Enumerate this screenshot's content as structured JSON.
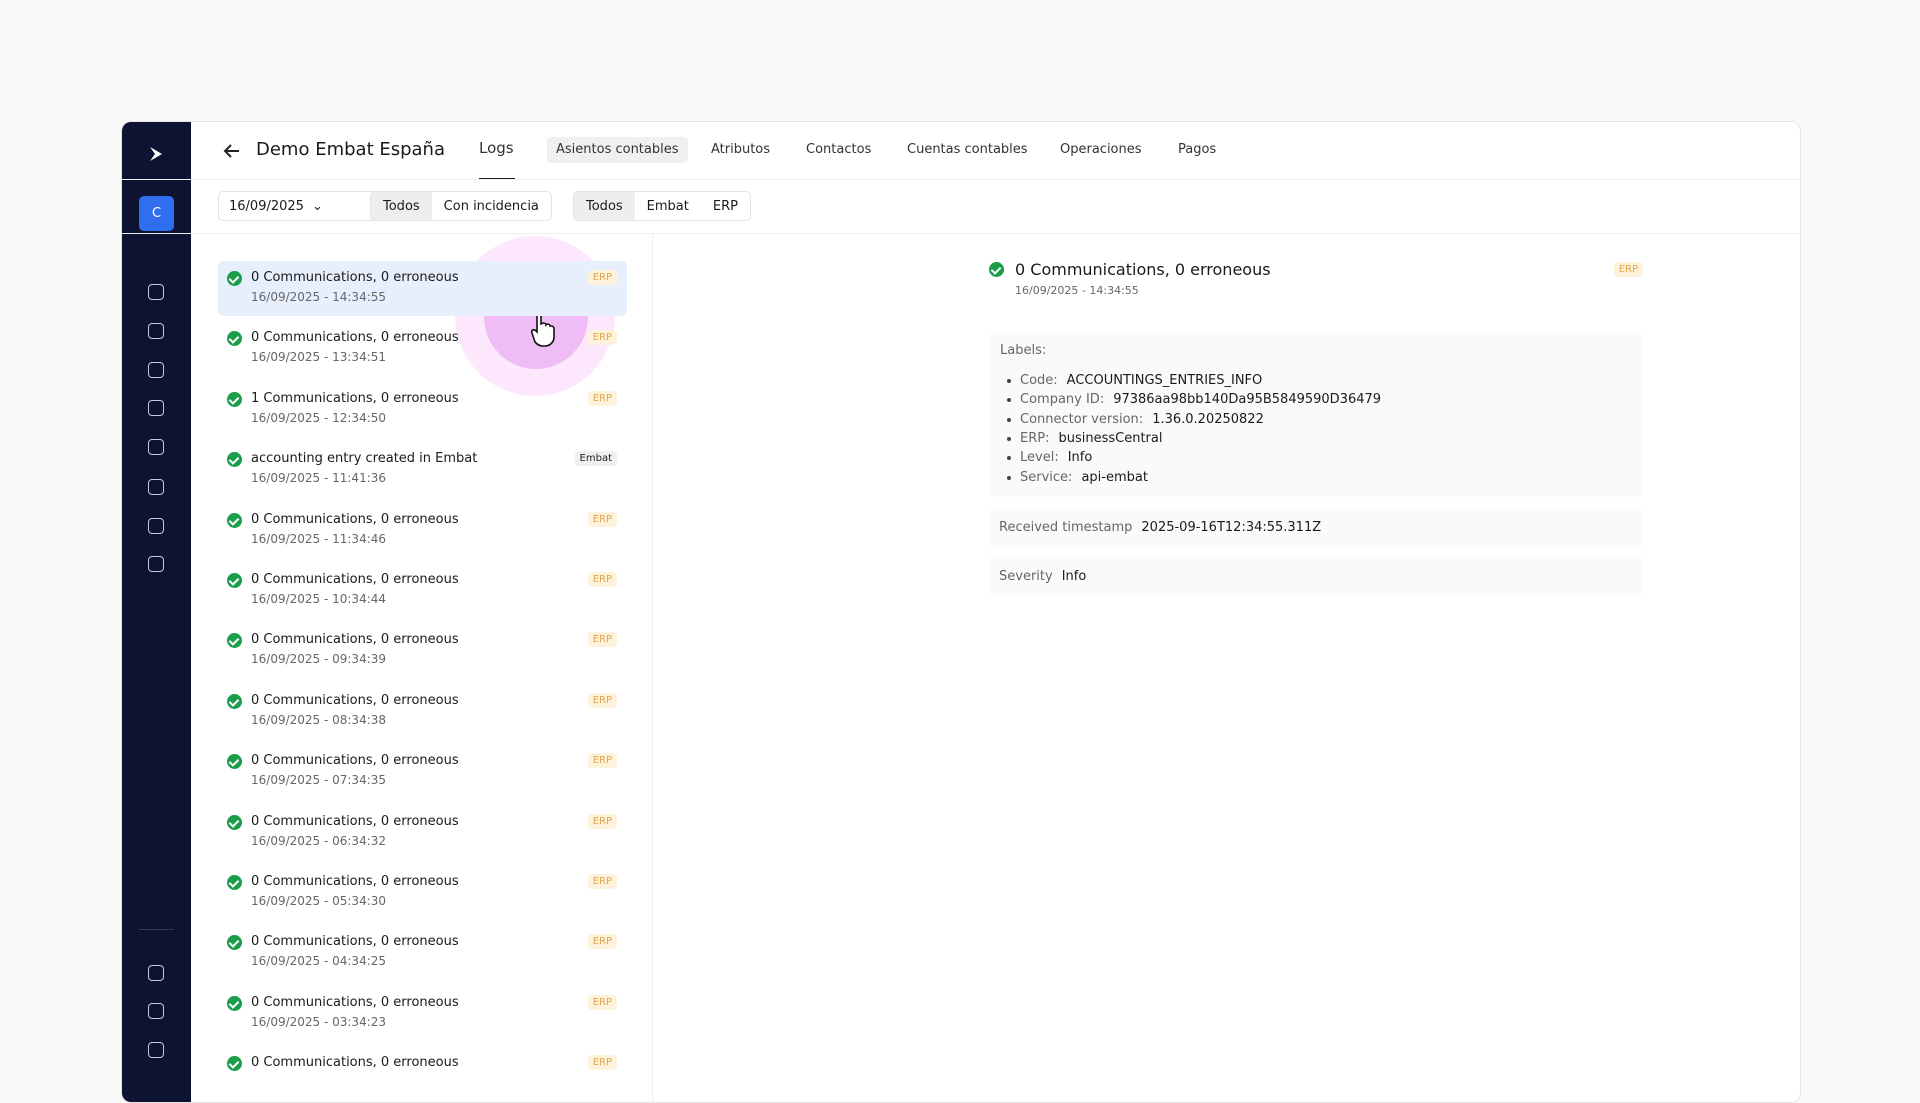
{
  "sidebar": {
    "avatar": "C"
  },
  "header": {
    "title": "Demo Embat España",
    "tabs": [
      "Logs",
      "Asientos contables",
      "Atributos",
      "Contactos",
      "Cuentas contables",
      "Operaciones",
      "Pagos"
    ]
  },
  "filters": {
    "date": "16/09/2025",
    "status": [
      "Todos",
      "Con incidencia"
    ],
    "source": [
      "Todos",
      "Embat",
      "ERP"
    ]
  },
  "logs": [
    {
      "title": "0 Communications, 0 erroneous",
      "date": "16/09/2025 - 14:34:55",
      "badge": "ERP"
    },
    {
      "title": "0 Communications, 0 erroneous",
      "date": "16/09/2025 - 13:34:51",
      "badge": "ERP"
    },
    {
      "title": "1 Communications, 0 erroneous",
      "date": "16/09/2025 - 12:34:50",
      "badge": "ERP"
    },
    {
      "title": "accounting entry created in Embat",
      "date": "16/09/2025 - 11:41:36",
      "badge": "Embat"
    },
    {
      "title": "0 Communications, 0 erroneous",
      "date": "16/09/2025 - 11:34:46",
      "badge": "ERP"
    },
    {
      "title": "0 Communications, 0 erroneous",
      "date": "16/09/2025 - 10:34:44",
      "badge": "ERP"
    },
    {
      "title": "0 Communications, 0 erroneous",
      "date": "16/09/2025 - 09:34:39",
      "badge": "ERP"
    },
    {
      "title": "0 Communications, 0 erroneous",
      "date": "16/09/2025 - 08:34:38",
      "badge": "ERP"
    },
    {
      "title": "0 Communications, 0 erroneous",
      "date": "16/09/2025 - 07:34:35",
      "badge": "ERP"
    },
    {
      "title": "0 Communications, 0 erroneous",
      "date": "16/09/2025 - 06:34:32",
      "badge": "ERP"
    },
    {
      "title": "0 Communications, 0 erroneous",
      "date": "16/09/2025 - 05:34:30",
      "badge": "ERP"
    },
    {
      "title": "0 Communications, 0 erroneous",
      "date": "16/09/2025 - 04:34:25",
      "badge": "ERP"
    },
    {
      "title": "0 Communications, 0 erroneous",
      "date": "16/09/2025 - 03:34:23",
      "badge": "ERP"
    },
    {
      "title": "0 Communications, 0 erroneous",
      "badge": "ERP"
    }
  ],
  "detail": {
    "title": "0 Communications, 0 erroneous",
    "date": "16/09/2025 - 14:34:55",
    "badge": "ERP",
    "labels_heading": "Labels:",
    "labels": [
      {
        "key": "Code:",
        "value": "ACCOUNTINGS_ENTRIES_INFO"
      },
      {
        "key": "Company ID:",
        "value": "97386aa98bb140Da95B5849590D36479"
      },
      {
        "key": "Connector version:",
        "value": "1.36.0.20250822"
      },
      {
        "key": "ERP:",
        "value": "businessCentral"
      },
      {
        "key": "Level:",
        "value": "Info"
      },
      {
        "key": "Service:",
        "value": "api-embat"
      }
    ],
    "received": {
      "key": "Received timestamp",
      "value": "2025-09-16T12:34:55.311Z"
    },
    "severity": {
      "key": "Severity",
      "value": "Info"
    }
  }
}
